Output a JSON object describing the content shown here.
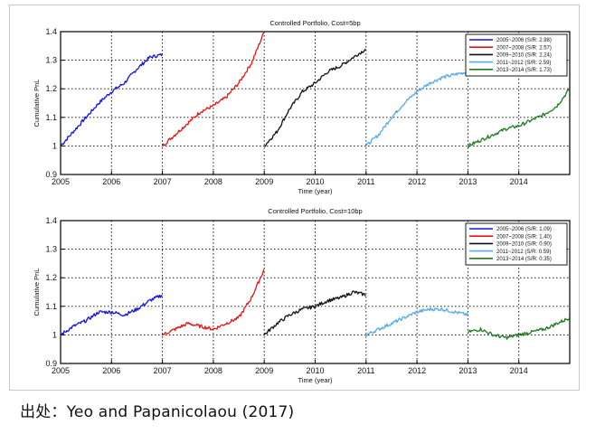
{
  "caption": "出处：Yeo and Papanicolaou (2017)",
  "colors": {
    "2005-2006": "#1010e8",
    "2007-2008": "#ee1111",
    "2009-2010": "#111111",
    "2011-2012": "#55aaee",
    "2013-2014": "#1f7a1f"
  },
  "chart_data": [
    {
      "type": "line",
      "title": "Controlled Portfolio, Cost=5bp",
      "xlabel": "Time (year)",
      "ylabel": "Cumulative PnL",
      "xlim": [
        2005,
        2015
      ],
      "ylim": [
        0.9,
        1.4
      ],
      "xticks": [
        "2005",
        "2006",
        "2007",
        "2008",
        "2009",
        "2010",
        "2011",
        "2012",
        "2013",
        "2014"
      ],
      "yticks": [
        "0.9",
        "1",
        "1.1",
        "1.2",
        "1.3",
        "1.4"
      ],
      "grid": true,
      "legend_position": "top-right",
      "series": [
        {
          "name": "2005~2006 (S/R: 2.98)",
          "color_key": "2005-2006",
          "x": [
            2005.0,
            2005.25,
            2005.5,
            2005.75,
            2006.0,
            2006.25,
            2006.5,
            2006.75,
            2007.0
          ],
          "y": [
            1.0,
            1.05,
            1.1,
            1.15,
            1.19,
            1.22,
            1.27,
            1.31,
            1.32
          ]
        },
        {
          "name": "2007~2008 (S/R: 2.57)",
          "color_key": "2007-2008",
          "x": [
            2007.0,
            2007.25,
            2007.5,
            2007.75,
            2008.0,
            2008.25,
            2008.5,
            2008.75,
            2009.0
          ],
          "y": [
            1.0,
            1.04,
            1.08,
            1.12,
            1.14,
            1.17,
            1.22,
            1.29,
            1.4
          ]
        },
        {
          "name": "2009~2010 (S/R: 2.24)",
          "color_key": "2009-2010",
          "x": [
            2009.0,
            2009.25,
            2009.5,
            2009.75,
            2010.0,
            2010.25,
            2010.5,
            2010.75,
            2011.0
          ],
          "y": [
            1.0,
            1.05,
            1.13,
            1.19,
            1.22,
            1.26,
            1.28,
            1.31,
            1.34
          ]
        },
        {
          "name": "2011~2012 (S/R: 2.59)",
          "color_key": "2011-2012",
          "x": [
            2011.0,
            2011.25,
            2011.5,
            2011.75,
            2012.0,
            2012.25,
            2012.5,
            2012.75,
            2013.0
          ],
          "y": [
            1.0,
            1.04,
            1.1,
            1.15,
            1.19,
            1.22,
            1.24,
            1.25,
            1.26
          ]
        },
        {
          "name": "2013~2014 (S/R: 1.73)",
          "color_key": "2013-2014",
          "x": [
            2013.0,
            2013.25,
            2013.5,
            2013.75,
            2014.0,
            2014.25,
            2014.5,
            2014.75,
            2015.0
          ],
          "y": [
            1.0,
            1.02,
            1.04,
            1.06,
            1.07,
            1.09,
            1.11,
            1.14,
            1.2
          ]
        }
      ]
    },
    {
      "type": "line",
      "title": "Controlled Portfolio, Cost=10bp",
      "xlabel": "Time (year)",
      "ylabel": "Cumulative PnL",
      "xlim": [
        2005,
        2015
      ],
      "ylim": [
        0.9,
        1.4
      ],
      "xticks": [
        "2005",
        "2006",
        "2007",
        "2008",
        "2009",
        "2010",
        "2011",
        "2012",
        "2013",
        "2014"
      ],
      "yticks": [
        "0.9",
        "1",
        "1.1",
        "1.2",
        "1.3",
        "1.4"
      ],
      "grid": true,
      "legend_position": "top-right",
      "series": [
        {
          "name": "2005~2006 (S/R: 1.09)",
          "color_key": "2005-2006",
          "x": [
            2005.0,
            2005.25,
            2005.5,
            2005.75,
            2006.0,
            2006.25,
            2006.5,
            2006.75,
            2007.0
          ],
          "y": [
            1.0,
            1.03,
            1.05,
            1.08,
            1.08,
            1.07,
            1.09,
            1.12,
            1.14
          ]
        },
        {
          "name": "2007~2008 (S/R: 1.40)",
          "color_key": "2007-2008",
          "x": [
            2007.0,
            2007.25,
            2007.5,
            2007.75,
            2008.0,
            2008.25,
            2008.5,
            2008.75,
            2009.0
          ],
          "y": [
            1.0,
            1.02,
            1.04,
            1.03,
            1.02,
            1.04,
            1.06,
            1.13,
            1.23
          ]
        },
        {
          "name": "2009~2010 (S/R: 0.90)",
          "color_key": "2009-2010",
          "x": [
            2009.0,
            2009.25,
            2009.5,
            2009.75,
            2010.0,
            2010.25,
            2010.5,
            2010.75,
            2011.0
          ],
          "y": [
            1.0,
            1.04,
            1.07,
            1.09,
            1.1,
            1.12,
            1.13,
            1.15,
            1.14
          ]
        },
        {
          "name": "2011~2012 (S/R: 0.59)",
          "color_key": "2011-2012",
          "x": [
            2011.0,
            2011.25,
            2011.5,
            2011.75,
            2012.0,
            2012.25,
            2012.5,
            2012.75,
            2013.0
          ],
          "y": [
            1.0,
            1.02,
            1.04,
            1.06,
            1.08,
            1.09,
            1.09,
            1.08,
            1.07
          ]
        },
        {
          "name": "2013~2014 (S/R: 0.35)",
          "color_key": "2013-2014",
          "x": [
            2013.0,
            2013.25,
            2013.5,
            2013.75,
            2014.0,
            2014.25,
            2014.5,
            2014.75,
            2015.0
          ],
          "y": [
            1.01,
            1.02,
            1.0,
            0.99,
            1.0,
            1.01,
            1.02,
            1.04,
            1.06
          ]
        }
      ]
    }
  ]
}
